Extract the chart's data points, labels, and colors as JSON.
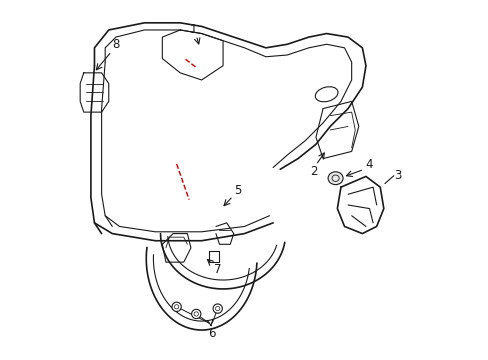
{
  "bg_color": "#ffffff",
  "line_color": "#1a1a1a",
  "red_color": "#cc0000",
  "label_color": "#000000",
  "figsize": [
    4.89,
    3.6
  ],
  "dpi": 100,
  "label_fontsize": 8.5,
  "lw_main": 1.2,
  "lw_thin": 0.8
}
